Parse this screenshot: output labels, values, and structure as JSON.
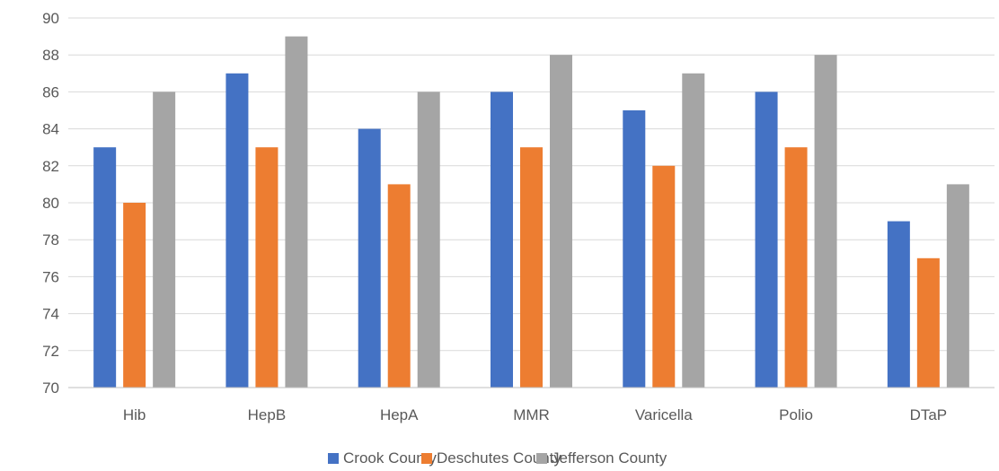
{
  "chart_data": {
    "type": "bar",
    "categories": [
      "Hib",
      "HepB",
      "HepA",
      "MMR",
      "Varicella",
      "Polio",
      "DTaP"
    ],
    "series": [
      {
        "name": "Crook County",
        "color": "#4472c4",
        "values": [
          83,
          87,
          84,
          86,
          85,
          86,
          79
        ]
      },
      {
        "name": "Deschutes County",
        "color": "#ed7d31",
        "values": [
          80,
          83,
          81,
          83,
          82,
          83,
          77
        ]
      },
      {
        "name": "Jefferson County",
        "color": "#a5a5a5",
        "values": [
          86,
          89,
          86,
          88,
          87,
          88,
          81
        ]
      }
    ],
    "ylim": [
      70,
      90
    ],
    "yticks": [
      70,
      72,
      74,
      76,
      78,
      80,
      82,
      84,
      86,
      88,
      90
    ],
    "grid": true,
    "legend": "bottom"
  }
}
